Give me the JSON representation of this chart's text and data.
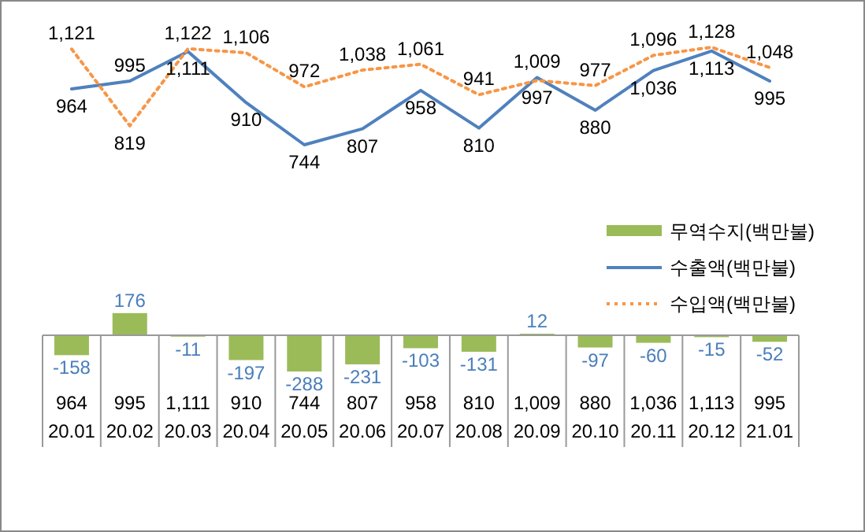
{
  "chart_data": [
    {
      "type": "line",
      "categories": [
        null,
        null,
        null,
        null,
        null,
        null,
        null,
        null,
        null,
        null,
        null,
        null,
        null
      ],
      "legend": "bottom right",
      "series": [
        {
          "name": "수출액(백만불)",
          "color": "#4f81bd",
          "line_style": "solid",
          "values": [
            964,
            995,
            1111,
            910,
            744,
            807,
            958,
            810,
            1009,
            880,
            1036,
            1113,
            995
          ],
          "value_labels": [
            "964",
            "995",
            "1,111",
            "910",
            "744",
            "807",
            "958",
            "810",
            "1,009",
            "880",
            "1,036",
            "1,113",
            "995"
          ]
        },
        {
          "name": "수입액(백만불)",
          "color": "#f79646",
          "line_style": "dotted",
          "values": [
            1121,
            819,
            1122,
            1106,
            972,
            1038,
            1061,
            941,
            997,
            977,
            1096,
            1128,
            1048
          ],
          "value_labels": [
            "1,121",
            "819",
            "1,122",
            "1,106",
            "972",
            "1,038",
            "1,061",
            "941",
            "997",
            "977",
            "1,096",
            "1,128",
            "1,048"
          ]
        }
      ]
    },
    {
      "type": "bar",
      "categories": [
        "20.01",
        "20.02",
        "20.03",
        "20.04",
        "20.05",
        "20.06",
        "20.07",
        "20.08",
        "20.09",
        "20.10",
        "20.11",
        "20.12",
        "21.01"
      ],
      "legend": "right",
      "series": [
        {
          "name": "무역수지(백만불)",
          "color": "#9bbb59",
          "values": [
            -158,
            176,
            -11,
            -197,
            -288,
            -231,
            -103,
            -131,
            12,
            -97,
            -60,
            -15,
            -52
          ]
        }
      ],
      "data_labels": true,
      "annotations": [
        "964",
        "995",
        "1,111",
        "910",
        "744",
        "807",
        "958",
        "810",
        "1,009",
        "880",
        "1,036",
        "1,113",
        "995"
      ]
    }
  ]
}
